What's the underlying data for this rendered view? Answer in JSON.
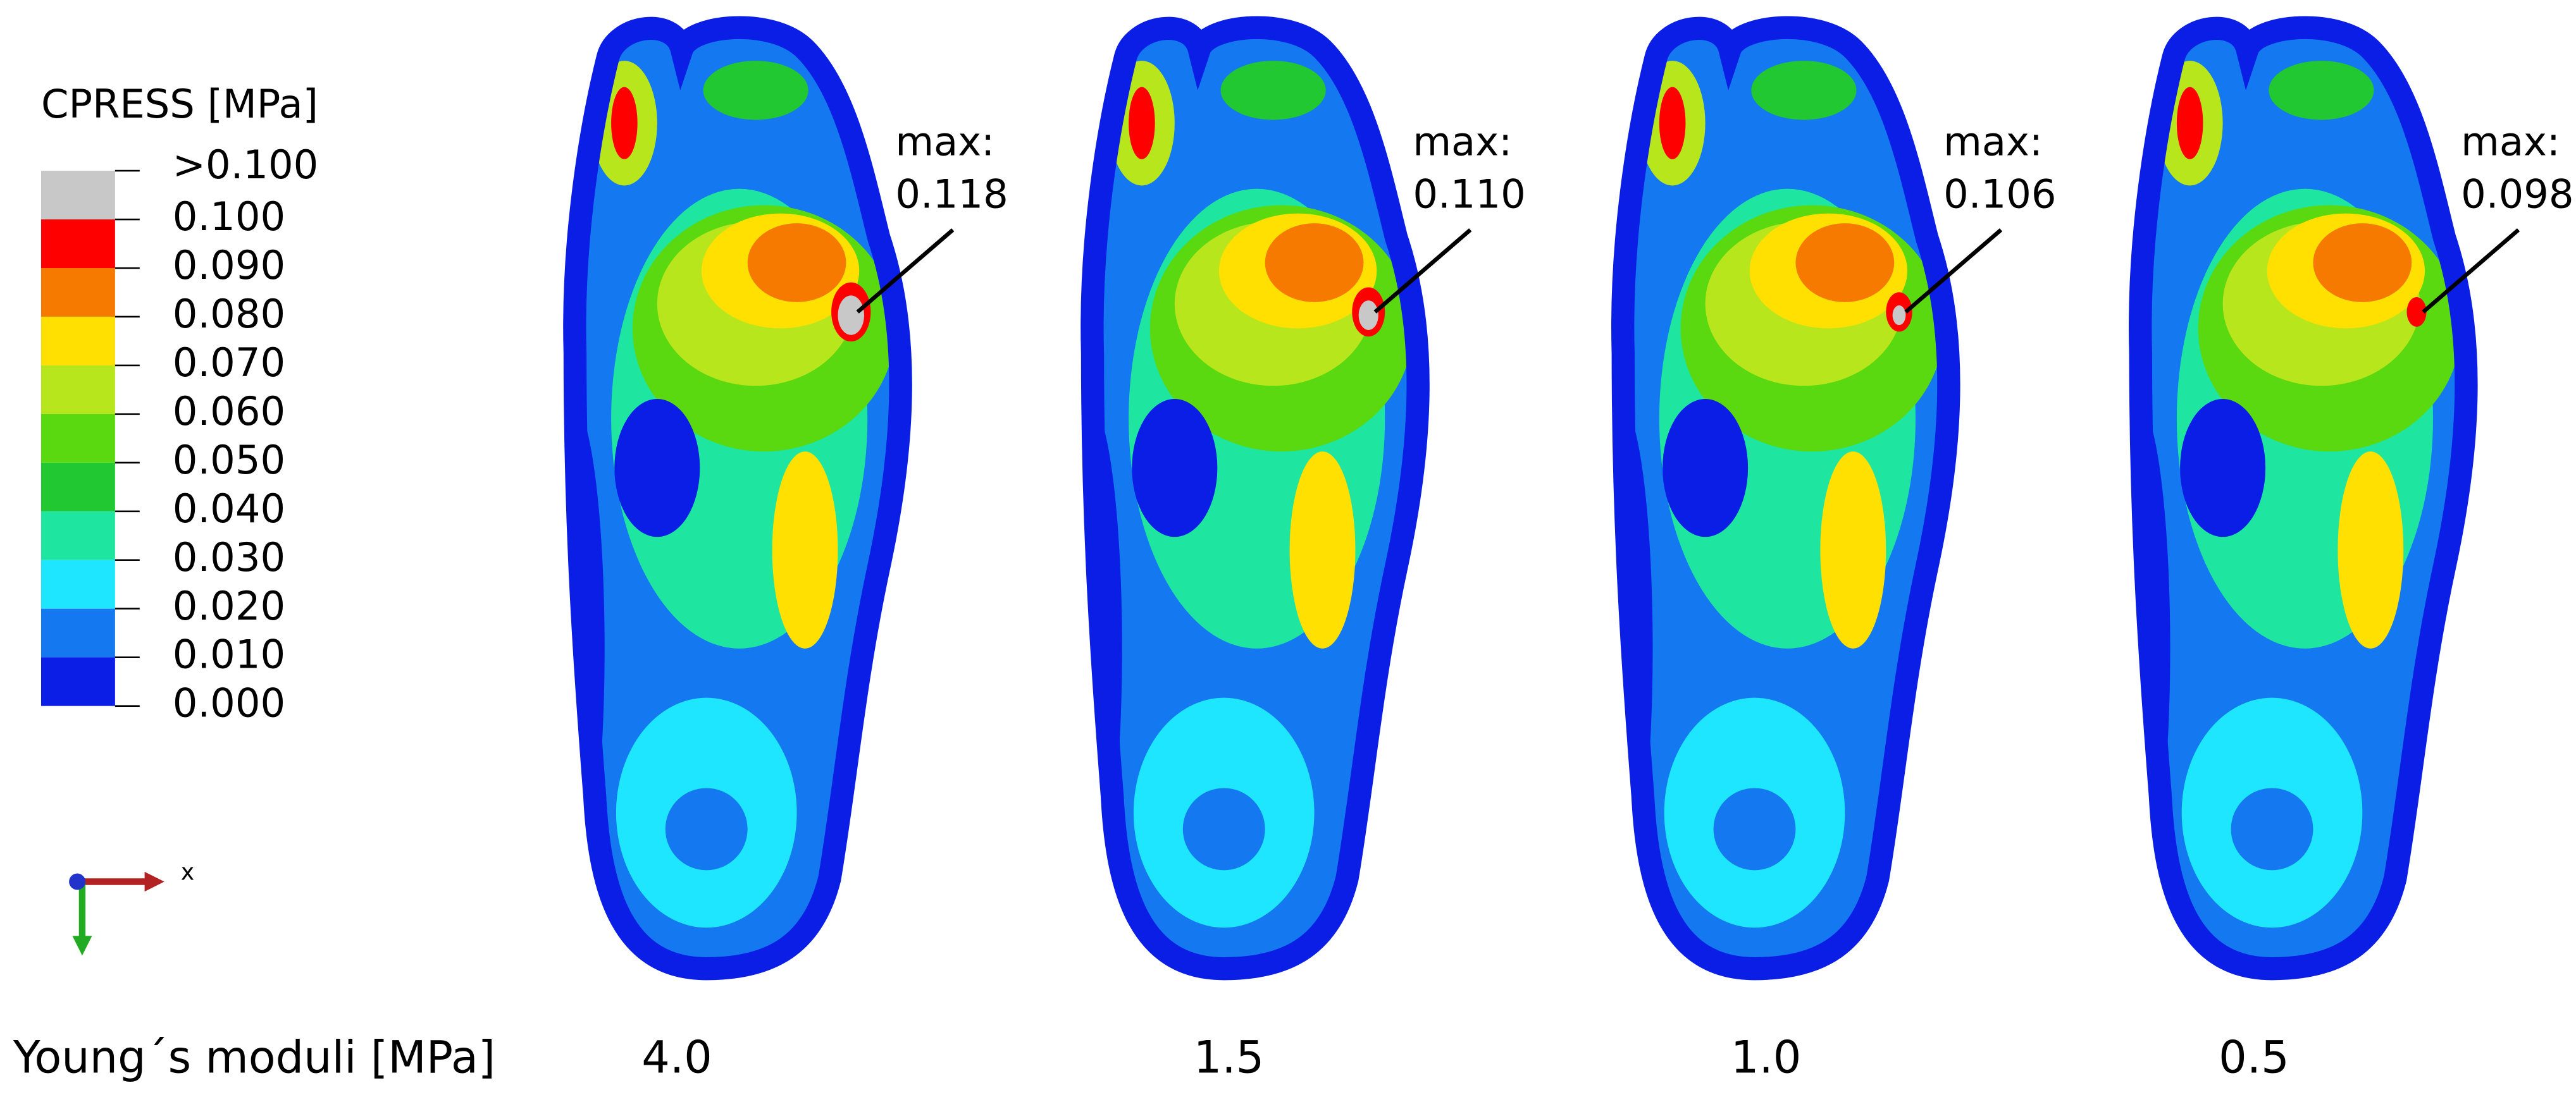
{
  "legend": {
    "title": "CPRESS [MPa]",
    "labels": [
      ">0.100",
      "0.100",
      "0.090",
      "0.080",
      "0.070",
      "0.060",
      "0.050",
      "0.040",
      "0.030",
      "0.020",
      "0.010",
      "0.000"
    ],
    "colors": [
      "#c8c8c8",
      "#ff0000",
      "#f77a00",
      "#ffe000",
      "#b8e61c",
      "#5ad810",
      "#22c832",
      "#1ee6a0",
      "#1ee6ff",
      "#1478f0",
      "#0a1ee6"
    ]
  },
  "axis_label": "x",
  "x_label": "Young´s moduli [MPa]",
  "panels": [
    {
      "max_label": "max:",
      "max_value": "0.118",
      "modulus": "4.0"
    },
    {
      "max_label": "max:",
      "max_value": "0.110",
      "modulus": "1.5"
    },
    {
      "max_label": "max:",
      "max_value": "0.106",
      "modulus": "1.0"
    },
    {
      "max_label": "max:",
      "max_value": "0.098",
      "modulus": "0.5"
    }
  ]
}
